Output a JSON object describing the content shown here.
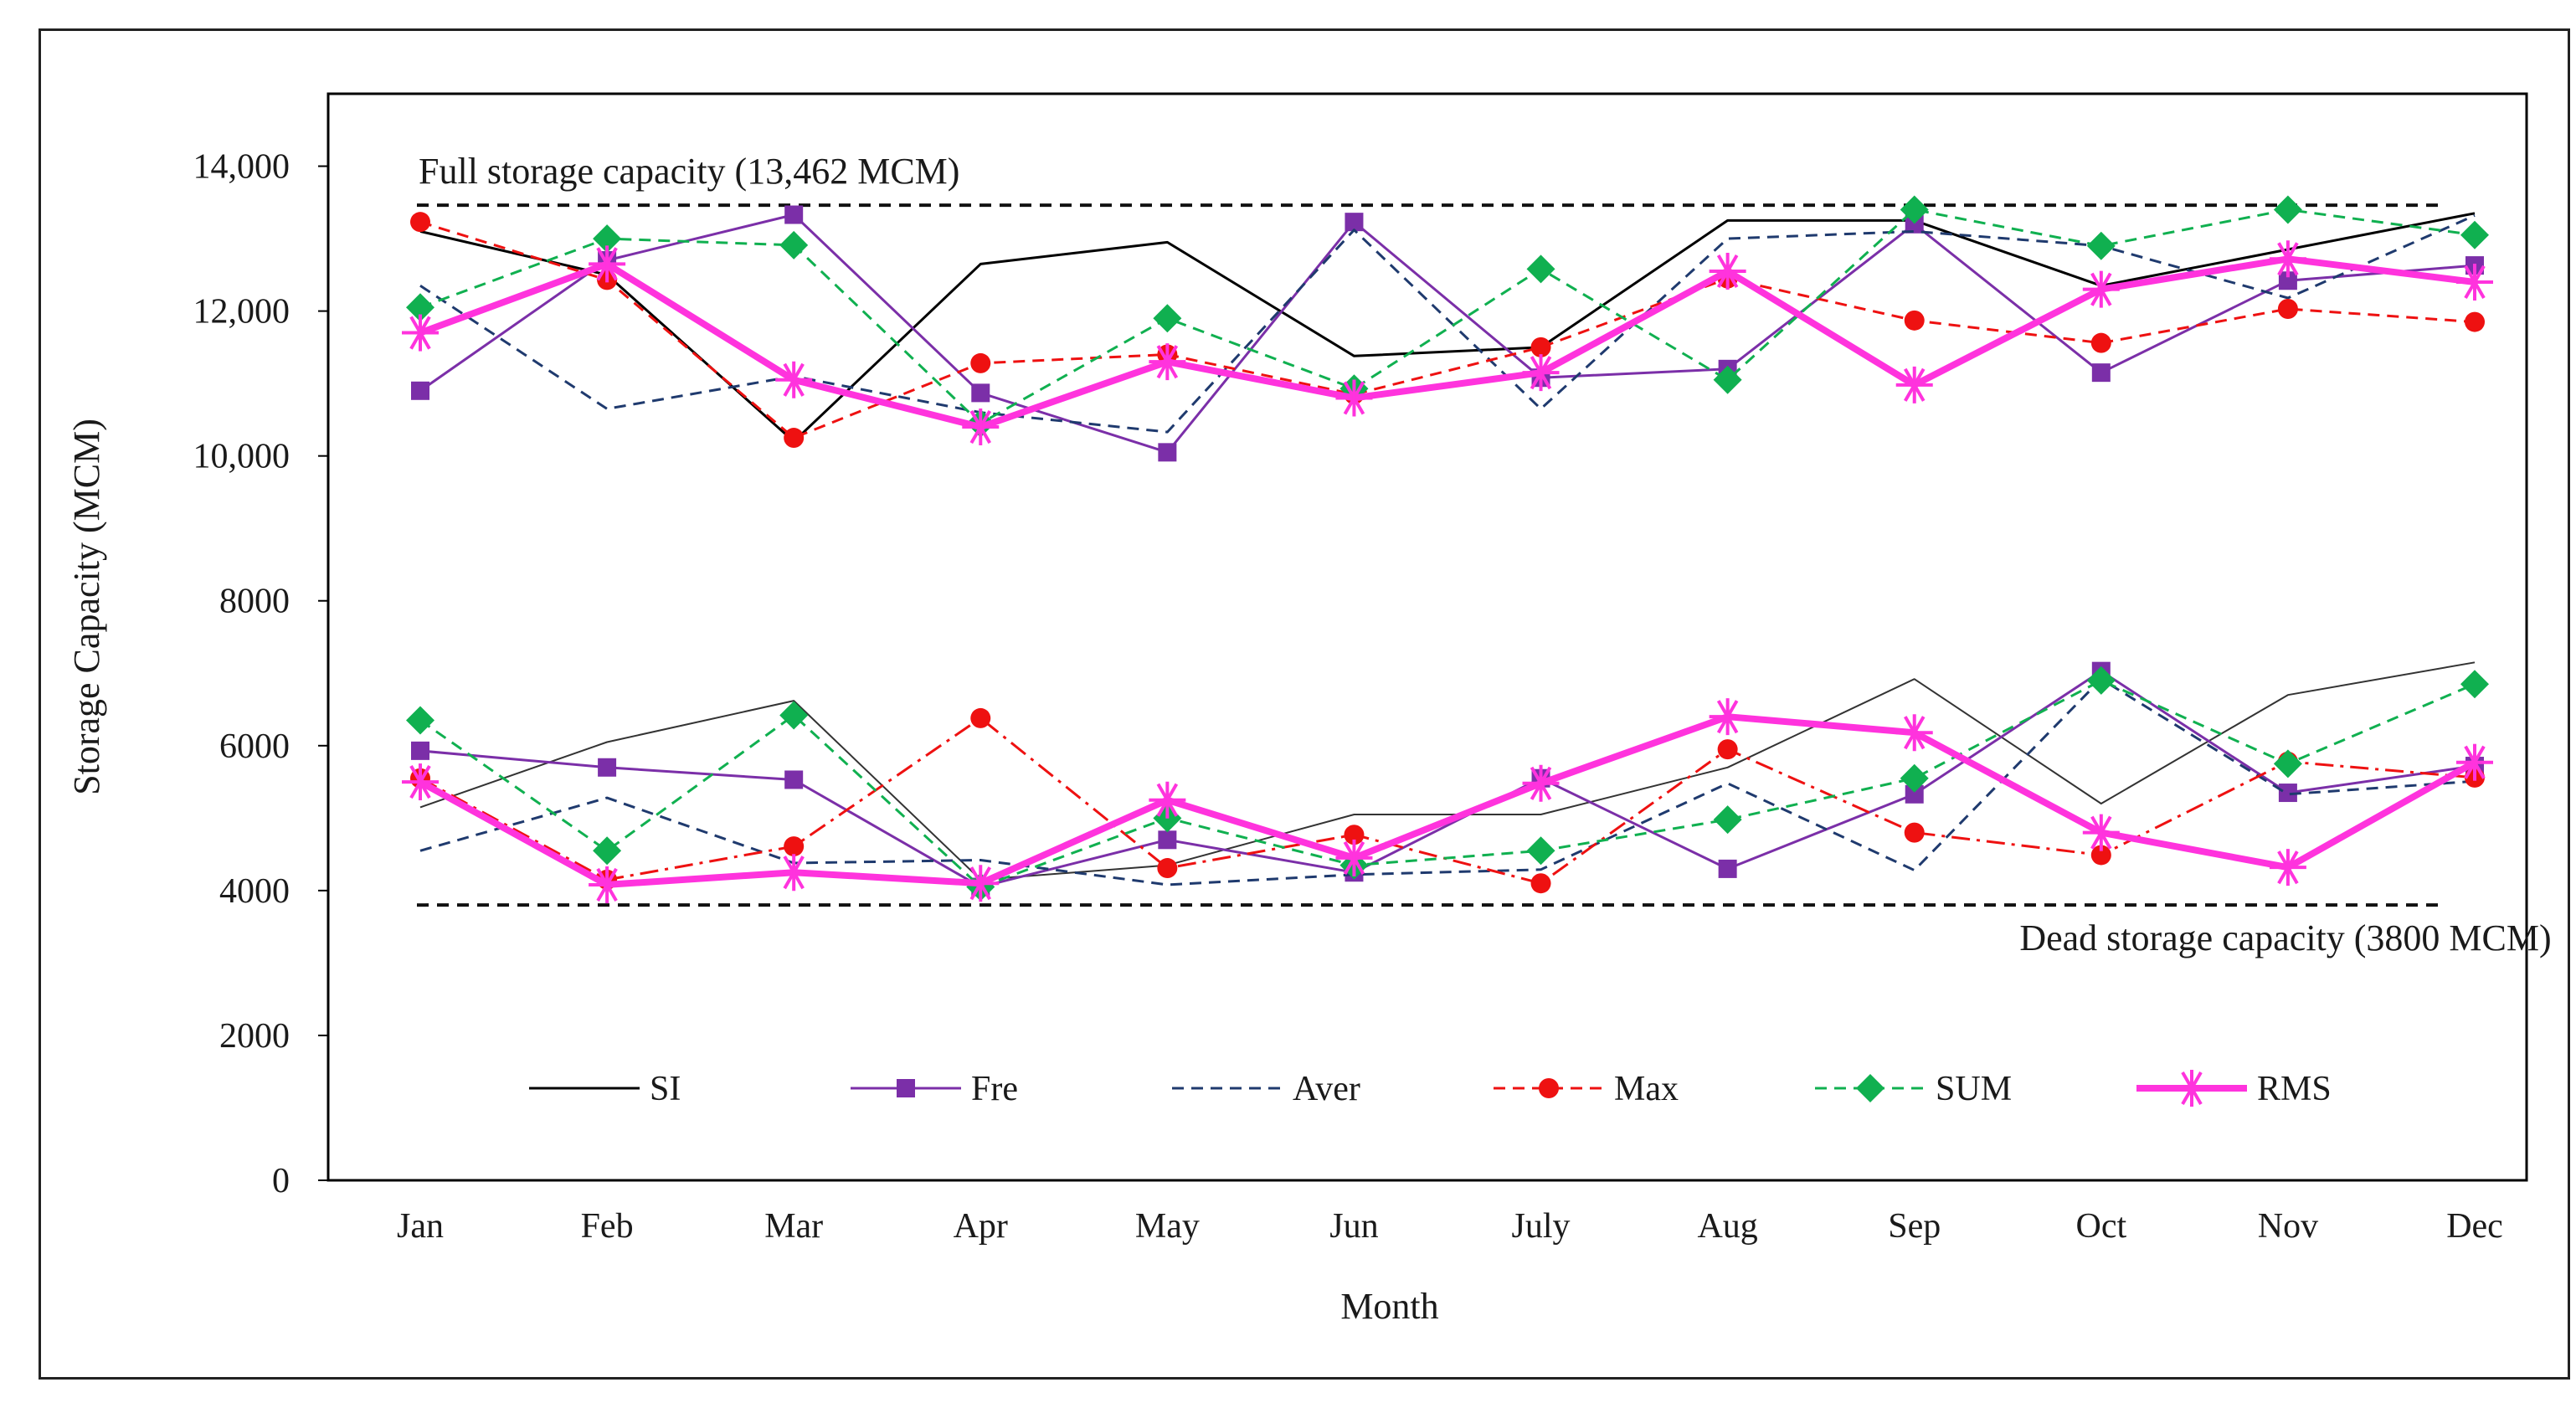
{
  "chart_data": {
    "type": "line",
    "xlabel": "Month",
    "ylabel": "Storage Capacity (MCM)",
    "ylim": [
      0,
      15000
    ],
    "y_ticks": [
      {
        "value": 0,
        "label": "0"
      },
      {
        "value": 2000,
        "label": "2000"
      },
      {
        "value": 4000,
        "label": "4000"
      },
      {
        "value": 6000,
        "label": "6000"
      },
      {
        "value": 8000,
        "label": "8000"
      },
      {
        "value": 10000,
        "label": "10,000"
      },
      {
        "value": 12000,
        "label": "12,000"
      },
      {
        "value": 14000,
        "label": "14,000"
      }
    ],
    "categories": [
      "Jan",
      "Feb",
      "Mar",
      "Apr",
      "May",
      "Jun",
      "July",
      "Aug",
      "Sep",
      "Oct",
      "Nov",
      "Dec"
    ],
    "reference_lines": [
      {
        "name": "full-storage",
        "value": 13462,
        "label": "Full storage capacity (13,462 MCM)"
      },
      {
        "name": "dead-storage",
        "value": 3800,
        "label": "Dead storage capacity (3800 MCM)"
      }
    ],
    "legend_position": "inside-bottom",
    "series": [
      {
        "name": "SI",
        "color": "#000000",
        "dash": "solid",
        "marker": "none",
        "width": 3,
        "values": [
          13100,
          12500,
          10200,
          12650,
          12950,
          11380,
          11500,
          13250,
          13250,
          12350,
          12850,
          13350
        ]
      },
      {
        "name": "Fre",
        "color": "#7b2fa8",
        "dash": "solid",
        "marker": "square",
        "width": 3,
        "values": [
          10900,
          12700,
          13330,
          10870,
          10050,
          13230,
          11080,
          11200,
          13200,
          11150,
          12420,
          12630
        ]
      },
      {
        "name": "Aver",
        "color": "#1f3a6e",
        "dash": "dashed",
        "marker": "none",
        "width": 3,
        "values": [
          12350,
          10650,
          11100,
          10600,
          10330,
          13120,
          10650,
          13000,
          13100,
          12900,
          12180,
          13320
        ]
      },
      {
        "name": "Max",
        "color": "#ee1111",
        "dash": "dashed",
        "marker": "circle",
        "width": 3,
        "values": [
          13230,
          12430,
          10250,
          11280,
          11400,
          10850,
          11500,
          12450,
          11870,
          11560,
          12030,
          11850
        ]
      },
      {
        "name": "SUM",
        "color": "#10b050",
        "dash": "dashed",
        "marker": "diamond",
        "width": 3,
        "values": [
          12050,
          13000,
          12910,
          10450,
          11900,
          10930,
          12580,
          11050,
          13400,
          12900,
          13400,
          13050
        ]
      },
      {
        "name": "RMS",
        "color": "#ff33dd",
        "dash": "solid",
        "marker": "star",
        "width": 8,
        "values": [
          11700,
          12650,
          11050,
          10400,
          11300,
          10800,
          11150,
          12550,
          10980,
          12300,
          12720,
          12400
        ]
      },
      {
        "name": "SI",
        "color": "#333333",
        "dash": "solid",
        "marker": "none",
        "width": 2,
        "legend": false,
        "values": [
          5150,
          6050,
          6620,
          4150,
          4350,
          5050,
          5050,
          5700,
          6920,
          5200,
          6700,
          7150
        ]
      },
      {
        "name": "Fre",
        "color": "#7b2fa8",
        "dash": "solid",
        "marker": "square",
        "width": 3,
        "legend": false,
        "values": [
          5930,
          5700,
          5530,
          4050,
          4700,
          4250,
          5550,
          4300,
          5330,
          7030,
          5350,
          5720
        ]
      },
      {
        "name": "Aver",
        "color": "#1f3a6e",
        "dash": "dashed",
        "marker": "none",
        "width": 3,
        "legend": false,
        "values": [
          4550,
          5280,
          4380,
          4420,
          4080,
          4220,
          4290,
          5480,
          4280,
          6920,
          5330,
          5510
        ]
      },
      {
        "name": "Max",
        "color": "#ee1111",
        "dash": "dashdot",
        "marker": "circle",
        "width": 3,
        "legend": false,
        "values": [
          5550,
          4150,
          4610,
          6380,
          4310,
          4770,
          4100,
          5950,
          4800,
          4490,
          5780,
          5560
        ]
      },
      {
        "name": "SUM",
        "color": "#10b050",
        "dash": "dashed",
        "marker": "diamond",
        "width": 3,
        "legend": false,
        "values": [
          6350,
          4550,
          6420,
          4050,
          5000,
          4350,
          4550,
          4980,
          5550,
          6900,
          5750,
          6850
        ]
      },
      {
        "name": "RMS",
        "color": "#ff33dd",
        "dash": "solid",
        "marker": "star",
        "width": 8,
        "legend": false,
        "values": [
          5500,
          4080,
          4250,
          4100,
          5250,
          4450,
          5480,
          6400,
          6180,
          4800,
          4320,
          5770
        ]
      }
    ]
  }
}
